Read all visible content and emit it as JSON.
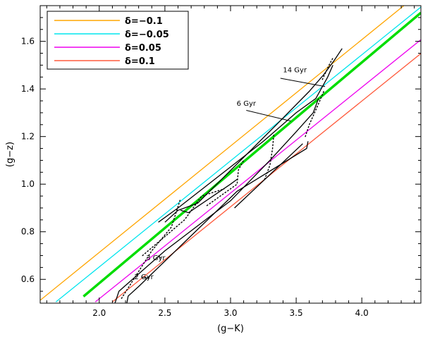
{
  "chart_data": {
    "type": "line",
    "title": "",
    "xlabel": "(g−K)",
    "ylabel": "(g−z)",
    "xlim": [
      1.55,
      4.45
    ],
    "ylim": [
      0.5,
      1.75
    ],
    "xticks": [
      2.0,
      2.5,
      3.0,
      3.5,
      4.0
    ],
    "xtick_labels": [
      "2.0",
      "2.5",
      "3.0",
      "3.5",
      "4.0"
    ],
    "yticks": [
      0.6,
      0.8,
      1.0,
      1.2,
      1.4,
      1.6
    ],
    "ytick_labels": [
      "0.6",
      "0.8",
      "1.0",
      "1.2",
      "1.4",
      "1.6"
    ],
    "legend_position": "top-left",
    "series": [
      {
        "name": "δ=−0.1",
        "color": "#FFA500",
        "width": 1.3,
        "points": [
          [
            1.55,
            0.512
          ],
          [
            4.32,
            1.75
          ]
        ]
      },
      {
        "name": "δ=−0.05",
        "color": "#00E5EE",
        "width": 1.3,
        "points": [
          [
            1.67,
            0.505
          ],
          [
            4.45,
            1.744
          ]
        ]
      },
      {
        "name": "δ=0.05",
        "color": "#EE00EE",
        "width": 1.3,
        "points": [
          [
            1.97,
            0.505
          ],
          [
            4.45,
            1.607
          ]
        ]
      },
      {
        "name": "δ=0.1",
        "color": "#FF5A3C",
        "width": 1.3,
        "points": [
          [
            2.1,
            0.505
          ],
          [
            4.45,
            1.549
          ]
        ]
      },
      {
        "name": "",
        "color": "#00DD00",
        "width": 3.5,
        "points": [
          [
            1.88,
            0.528
          ],
          [
            4.45,
            1.72
          ]
        ]
      }
    ],
    "isochrones": [
      {
        "color": "#000000",
        "style": "solid",
        "points": [
          [
            2.21,
            0.5
          ],
          [
            2.22,
            0.53
          ],
          [
            2.3,
            0.57
          ],
          [
            3.05,
            0.97
          ],
          [
            3.58,
            1.15
          ],
          [
            3.59,
            1.18
          ]
        ]
      },
      {
        "color": "#000000",
        "style": "solid",
        "points": [
          [
            2.12,
            0.5
          ],
          [
            2.15,
            0.55
          ],
          [
            2.5,
            0.72
          ],
          [
            3.0,
            0.93
          ],
          [
            3.3,
            1.1
          ],
          [
            3.5,
            1.22
          ],
          [
            3.63,
            1.3
          ],
          [
            3.67,
            1.36
          ]
        ]
      },
      {
        "color": "#000000",
        "style": "solid",
        "points": [
          [
            2.45,
            0.84
          ],
          [
            2.6,
            0.9
          ],
          [
            3.25,
            1.18
          ],
          [
            3.5,
            1.3
          ],
          [
            3.65,
            1.36
          ],
          [
            3.74,
            1.45
          ],
          [
            3.78,
            1.5
          ]
        ]
      },
      {
        "color": "#000000",
        "style": "solid",
        "points": [
          [
            2.5,
            0.84
          ],
          [
            2.6,
            0.89
          ],
          [
            2.75,
            0.92
          ],
          [
            3.35,
            1.25
          ],
          [
            3.6,
            1.39
          ],
          [
            3.71,
            1.46
          ],
          [
            3.79,
            1.52
          ],
          [
            3.85,
            1.57
          ]
        ]
      },
      {
        "color": "#000000",
        "style": "solid",
        "points": [
          [
            2.62,
            0.89
          ],
          [
            2.68,
            0.88
          ],
          [
            3.0,
            1.0
          ],
          [
            3.05,
            1.02
          ]
        ]
      },
      {
        "color": "#000000",
        "style": "solid",
        "points": [
          [
            3.03,
            0.9
          ],
          [
            3.55,
            1.17
          ]
        ]
      },
      {
        "color": "#000000",
        "style": "dotted",
        "points": [
          [
            2.17,
            0.52
          ],
          [
            2.4,
            0.72
          ],
          [
            2.55,
            0.82
          ],
          [
            2.62,
            0.94
          ]
        ]
      },
      {
        "color": "#000000",
        "style": "dotted",
        "points": [
          [
            2.33,
            0.7
          ],
          [
            2.65,
            0.85
          ],
          [
            2.78,
            0.95
          ],
          [
            2.95,
            0.98
          ]
        ]
      },
      {
        "color": "#000000",
        "style": "dotted",
        "points": [
          [
            2.82,
            0.91
          ],
          [
            3.05,
            1.0
          ],
          [
            3.06,
            1.06
          ],
          [
            3.1,
            1.1
          ]
        ]
      },
      {
        "color": "#000000",
        "style": "dotted",
        "points": [
          [
            3.26,
            1.02
          ],
          [
            3.3,
            1.08
          ],
          [
            3.32,
            1.15
          ],
          [
            3.33,
            1.21
          ]
        ]
      },
      {
        "color": "#000000",
        "style": "dotted",
        "points": [
          [
            3.57,
            1.2
          ],
          [
            3.6,
            1.25
          ],
          [
            3.64,
            1.3
          ],
          [
            3.68,
            1.35
          ],
          [
            3.71,
            1.39
          ]
        ]
      },
      {
        "color": "#000000",
        "style": "dotted",
        "points": [
          [
            3.7,
            1.44
          ],
          [
            3.75,
            1.5
          ],
          [
            3.78,
            1.53
          ]
        ]
      }
    ],
    "annotations": [
      {
        "text": "14 Gyr",
        "text_at": [
          3.49,
          1.47
        ],
        "arrow_from": [
          3.38,
          1.445
        ],
        "arrow_to": [
          3.72,
          1.41
        ]
      },
      {
        "text": "6 Gyr",
        "text_at": [
          3.12,
          1.33
        ],
        "arrow_from": [
          3.12,
          1.31
        ],
        "arrow_to": [
          3.46,
          1.265
        ]
      },
      {
        "text": "3 Gyr",
        "text_at": [
          2.43,
          0.68
        ],
        "arrow_from": [
          2.47,
          0.69
        ],
        "arrow_to": [
          2.45,
          0.7
        ]
      },
      {
        "text": "2 Gyr",
        "text_at": [
          2.34,
          0.6
        ],
        "arrow_from": [
          2.38,
          0.605
        ],
        "arrow_to": [
          2.32,
          0.61
        ]
      }
    ]
  }
}
